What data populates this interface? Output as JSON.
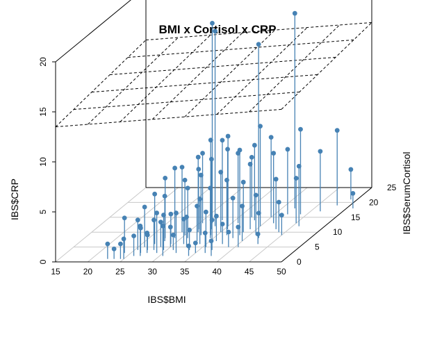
{
  "chart_data": {
    "type": "scatter",
    "title": "BMI x Cortisol x CRP",
    "xlabel": "IBS$BMI",
    "ylabel": "IBS$SerumCortisol",
    "zlabel": "IBS$CRP",
    "xlim": [
      15,
      50
    ],
    "ylim": [
      0,
      25
    ],
    "zlim": [
      0,
      20
    ],
    "x_ticks": [
      "15",
      "20",
      "25",
      "30",
      "35",
      "40",
      "45",
      "50"
    ],
    "y_ticks": [
      "0",
      "5",
      "10",
      "15",
      "20",
      "25"
    ],
    "z_ticks": [
      "0",
      "5",
      "10",
      "15",
      "20"
    ],
    "type_detail": "scatterplot3d with vertical drop lines and regression plane",
    "regression_plane": {
      "z_at_origin": 13.5,
      "slope_x": 0.05,
      "slope_y": 0.05
    },
    "color": "#4682b4",
    "points": [
      [
        22.5,
        1.0,
        1.5
      ],
      [
        23.5,
        1.0,
        1.0
      ],
      [
        24.5,
        1.0,
        1.5
      ],
      [
        25.0,
        1.0,
        2.0
      ],
      [
        26.0,
        2.0,
        2.0
      ],
      [
        26.5,
        3.0,
        2.5
      ],
      [
        27.0,
        2.0,
        3.0
      ],
      [
        27.5,
        3.0,
        2.0
      ],
      [
        28.0,
        4.0,
        3.0
      ],
      [
        26.0,
        5.0,
        4.0
      ],
      [
        28.5,
        5.0,
        2.5
      ],
      [
        29.0,
        3.0,
        4.0
      ],
      [
        27.0,
        6.0,
        5.0
      ],
      [
        29.5,
        4.0,
        3.5
      ],
      [
        30.0,
        5.0,
        2.0
      ],
      [
        30.5,
        2.0,
        3.0
      ],
      [
        31.0,
        4.0,
        1.5
      ],
      [
        31.5,
        6.0,
        2.5
      ],
      [
        32.0,
        3.0,
        4.0
      ],
      [
        32.5,
        5.0,
        3.0
      ],
      [
        33.0,
        7.0,
        3.5
      ],
      [
        27.5,
        8.0,
        6.0
      ],
      [
        29.0,
        8.0,
        7.0
      ],
      [
        31.0,
        8.0,
        5.0
      ],
      [
        33.5,
        4.0,
        2.0
      ],
      [
        34.0,
        6.0,
        4.5
      ],
      [
        34.5,
        8.0,
        5.0
      ],
      [
        35.0,
        3.0,
        1.0
      ],
      [
        35.5,
        5.0,
        3.5
      ],
      [
        36.0,
        7.0,
        2.5
      ],
      [
        29.0,
        10.0,
        6.5
      ],
      [
        31.0,
        11.0,
        6.0
      ],
      [
        33.0,
        11.0,
        7.0
      ],
      [
        35.0,
        10.0,
        6.0
      ],
      [
        36.5,
        9.0,
        5.5
      ],
      [
        37.0,
        4.0,
        3.0
      ],
      [
        37.5,
        6.0,
        2.0
      ],
      [
        38.0,
        8.0,
        4.0
      ],
      [
        38.5,
        10.0,
        5.0
      ],
      [
        39.0,
        5.0,
        1.5
      ],
      [
        40.0,
        7.0,
        3.5
      ],
      [
        41.0,
        9.0,
        4.0
      ],
      [
        42.0,
        8.0,
        2.5
      ],
      [
        43.0,
        11.0,
        5.0
      ],
      [
        44.0,
        10.0,
        3.0
      ],
      [
        45.0,
        13.0,
        4.5
      ],
      [
        46.0,
        12.0,
        6.0
      ],
      [
        30.5,
        13.0,
        7.0
      ],
      [
        33.0,
        14.0,
        8.0
      ],
      [
        35.0,
        12.0,
        9.0
      ],
      [
        38.0,
        14.0,
        7.5
      ],
      [
        40.0,
        15.0,
        8.0
      ],
      [
        42.0,
        16.0,
        6.5
      ],
      [
        46.5,
        17.0,
        6.0
      ],
      [
        48.0,
        19.0,
        7.5
      ],
      [
        32.0,
        13.0,
        20.0
      ],
      [
        33.0,
        12.0,
        19.5
      ],
      [
        37.5,
        16.0,
        17.0
      ],
      [
        42.0,
        18.0,
        19.5
      ],
      [
        34.0,
        9.0,
        9.5
      ],
      [
        35.5,
        11.0,
        8.0
      ],
      [
        40.0,
        12.0,
        10.0
      ],
      [
        38.5,
        9.0,
        8.5
      ],
      [
        44.0,
        16.0,
        8.5
      ],
      [
        49.0,
        21.0,
        3.0
      ],
      [
        51.0,
        18.0,
        1.5
      ],
      [
        24.0,
        3.0,
        3.5
      ],
      [
        25.5,
        4.0,
        3.0
      ],
      [
        28.0,
        7.0,
        4.5
      ],
      [
        30.0,
        9.0,
        5.5
      ],
      [
        32.5,
        9.0,
        6.0
      ],
      [
        36.0,
        13.0,
        7.0
      ],
      [
        39.0,
        11.0,
        6.5
      ],
      [
        41.5,
        13.0,
        7.0
      ],
      [
        34.5,
        2.0,
        1.0
      ],
      [
        36.5,
        3.0,
        2.0
      ],
      [
        38.0,
        2.0,
        1.5
      ],
      [
        40.5,
        5.0,
        2.0
      ],
      [
        43.0,
        6.0,
        1.0
      ],
      [
        27.0,
        4.0,
        1.5
      ],
      [
        29.5,
        6.0,
        3.0
      ],
      [
        31.5,
        10.0,
        7.5
      ],
      [
        37.0,
        15.0,
        6.0
      ],
      [
        45.0,
        9.0,
        2.0
      ]
    ]
  }
}
